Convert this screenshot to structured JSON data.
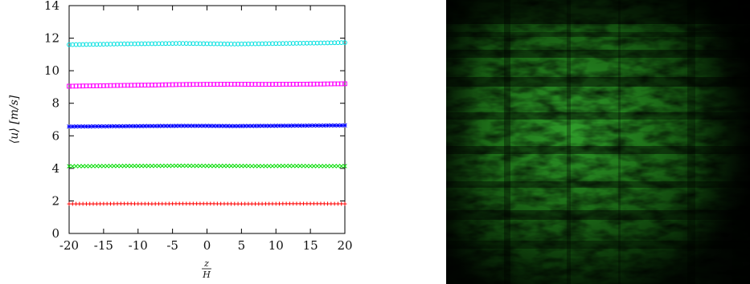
{
  "chart_data": {
    "type": "scatter",
    "xlabel": "z/H",
    "xlabel_num": "z",
    "xlabel_den": "H",
    "ylabel": "⟨u⟩ [m/s]",
    "xlim": [
      -20,
      20
    ],
    "ylim": [
      0,
      14
    ],
    "xticks": [
      "-20",
      "-15",
      "-10",
      "-5",
      "0",
      "5",
      "10",
      "15",
      "20"
    ],
    "yticks": [
      "0",
      "2",
      "4",
      "6",
      "8",
      "10",
      "12",
      "14"
    ],
    "series": [
      {
        "color": "#ff0000",
        "marker": "plus",
        "mean": 1.82,
        "values": [
          1.82,
          1.82,
          1.83,
          1.82,
          1.83,
          1.83,
          1.82,
          1.82,
          1.83,
          1.83,
          1.82
        ]
      },
      {
        "color": "#00dd00",
        "marker": "x",
        "mean": 4.15,
        "values": [
          4.13,
          4.14,
          4.15,
          4.15,
          4.16,
          4.15,
          4.15,
          4.14,
          4.15,
          4.14,
          4.14
        ]
      },
      {
        "color": "#0000ff",
        "marker": "star",
        "mean": 6.6,
        "values": [
          6.57,
          6.58,
          6.59,
          6.6,
          6.61,
          6.61,
          6.6,
          6.61,
          6.62,
          6.63,
          6.64
        ]
      },
      {
        "color": "#ff00ff",
        "marker": "square",
        "mean": 9.15,
        "values": [
          9.05,
          9.07,
          9.1,
          9.12,
          9.15,
          9.16,
          9.17,
          9.16,
          9.17,
          9.18,
          9.2
        ]
      },
      {
        "color": "#00e0e0",
        "marker": "circle",
        "mean": 11.65,
        "values": [
          11.6,
          11.62,
          11.65,
          11.66,
          11.68,
          11.66,
          11.64,
          11.66,
          11.68,
          11.7,
          11.73
        ]
      }
    ]
  },
  "photo": {
    "description_color": "#1f8a1f"
  }
}
